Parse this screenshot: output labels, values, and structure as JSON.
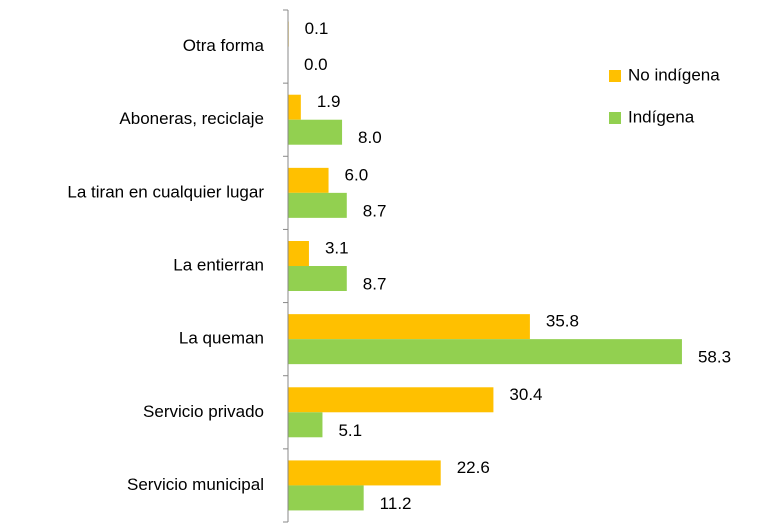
{
  "chart_data": {
    "type": "hbar",
    "categories": [
      "Otra forma",
      "Aboneras, reciclaje",
      "La tiran en cualquier lugar",
      "La entierran",
      "La queman",
      "Servicio privado",
      "Servicio municipal"
    ],
    "series": [
      {
        "name": "No indígena",
        "color": "#ffc000",
        "values": [
          0.1,
          1.9,
          6,
          3.1,
          35.8,
          30.4,
          22.6
        ],
        "value_labels": [
          "0.1",
          "1.9",
          "6.0",
          "3.1",
          "35.8",
          "30.4",
          "22.6"
        ]
      },
      {
        "name": "Indígena",
        "color": "#92d050",
        "values": [
          0,
          8,
          8.7,
          8.7,
          58.3,
          5.1,
          11.2
        ],
        "value_labels": [
          "0.0",
          "8.0",
          "8.7",
          "8.7",
          "58.3",
          "5.1",
          "11.2"
        ]
      }
    ],
    "xlim": [
      0,
      70
    ],
    "legend": "upper right"
  }
}
